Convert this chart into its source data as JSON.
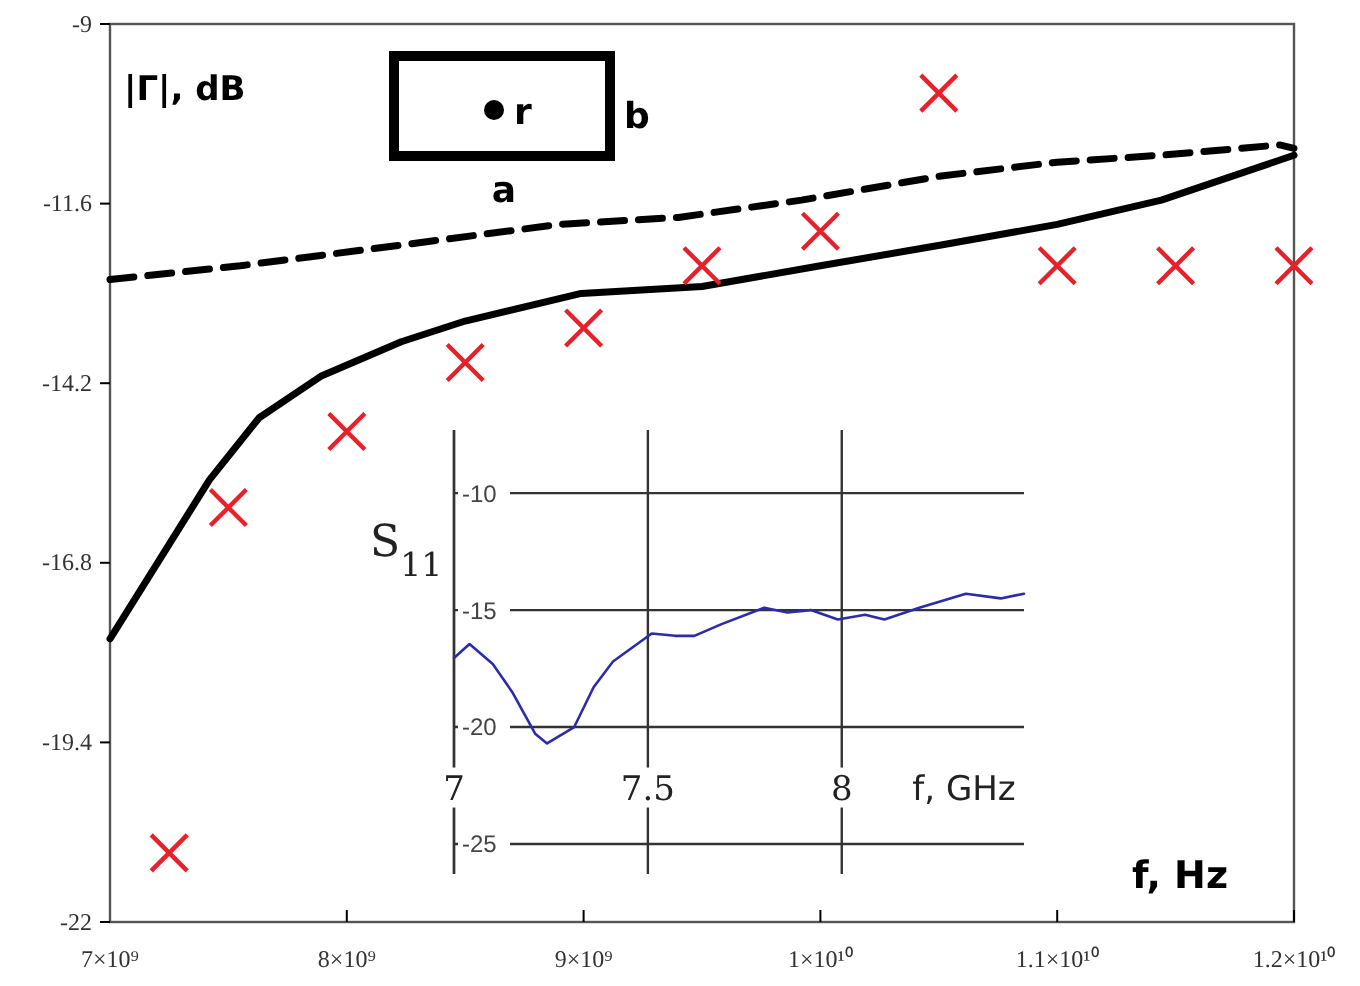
{
  "chart_data": [
    {
      "type": "line",
      "xlabel": "f, Hz",
      "ylabel": "|Γ|, dB",
      "xlim": [
        7000000000,
        12000000000
      ],
      "ylim": [
        -22,
        -9
      ],
      "xticks": [
        {
          "value": 7000000000,
          "label": "7×10⁹"
        },
        {
          "value": 8000000000,
          "label": "8×10⁹"
        },
        {
          "value": 9000000000,
          "label": "9×10⁹"
        },
        {
          "value": 10000000000,
          "label": "1×10¹⁰"
        },
        {
          "value": 11000000000,
          "label": "1.1×10¹⁰"
        },
        {
          "value": 12000000000,
          "label": "1.2×10¹⁰"
        }
      ],
      "yticks": [
        -9,
        -11.6,
        -14.2,
        -16.8,
        -19.4,
        -22
      ],
      "annotations": [
        "r",
        "b",
        "a"
      ],
      "series": [
        {
          "type": "line",
          "color": "#000000",
          "line_style": "solid",
          "x": [
            7000000000,
            7420000000,
            7630000000,
            7890000000,
            8230000000,
            8500000000,
            8990000000,
            9500000000,
            10000000000,
            10510000000,
            11000000000,
            11440000000,
            12000000000
          ],
          "values": [
            -17.9,
            -15.6,
            -14.7,
            -14.1,
            -13.6,
            -13.3,
            -12.9,
            -12.8,
            -12.5,
            -12.2,
            -11.9,
            -11.55,
            -10.9
          ]
        },
        {
          "type": "line",
          "color": "#000000",
          "line_style": "dashed",
          "x": [
            7000000000,
            7550000000,
            8230000000,
            8900000000,
            9400000000,
            9920000000,
            10510000000,
            11000000000,
            11440000000,
            11940000000,
            12000000000
          ],
          "values": [
            -12.7,
            -12.5,
            -12.2,
            -11.9,
            -11.8,
            -11.55,
            -11.2,
            -11.0,
            -10.9,
            -10.75,
            -10.8
          ]
        },
        {
          "type": "scatter",
          "color": "#e8202a",
          "marker": "cross",
          "x": [
            7250000000,
            7500000000,
            8000000000,
            8500000000,
            9000000000,
            9500000000,
            10000000000,
            10500000000,
            11000000000,
            11500000000,
            12000000000
          ],
          "values": [
            -21.0,
            -16.0,
            -14.9,
            -13.9,
            -13.4,
            -12.5,
            -12.0,
            -10.0,
            -12.5,
            -12.5,
            -12.5
          ]
        }
      ]
    },
    {
      "type": "line",
      "xlabel": "f, GHz",
      "ylabel": "S$_{11}$",
      "grid": true,
      "xlim": [
        7,
        8.47
      ],
      "ylim": [
        -25,
        -7.3
      ],
      "xticks": [
        7,
        7.5,
        8
      ],
      "yticks": [
        -10,
        -15,
        -20,
        -25
      ],
      "series": [
        {
          "color": "#2b2bb0",
          "line_style": "solid",
          "x": [
            7.0,
            7.04,
            7.1,
            7.15,
            7.21,
            7.24,
            7.31,
            7.36,
            7.41,
            7.46,
            7.51,
            7.57,
            7.62,
            7.69,
            7.8,
            7.86,
            7.92,
            7.99,
            8.06,
            8.11,
            8.2,
            8.32,
            8.41,
            8.47
          ],
          "values": [
            -17.05,
            -16.45,
            -17.3,
            -18.5,
            -20.3,
            -20.7,
            -20.0,
            -18.3,
            -17.2,
            -16.6,
            -16.0,
            -16.1,
            -16.1,
            -15.6,
            -14.9,
            -15.1,
            -15.0,
            -15.4,
            -15.2,
            -15.4,
            -14.9,
            -14.3,
            -14.5,
            -14.3
          ]
        }
      ]
    }
  ]
}
